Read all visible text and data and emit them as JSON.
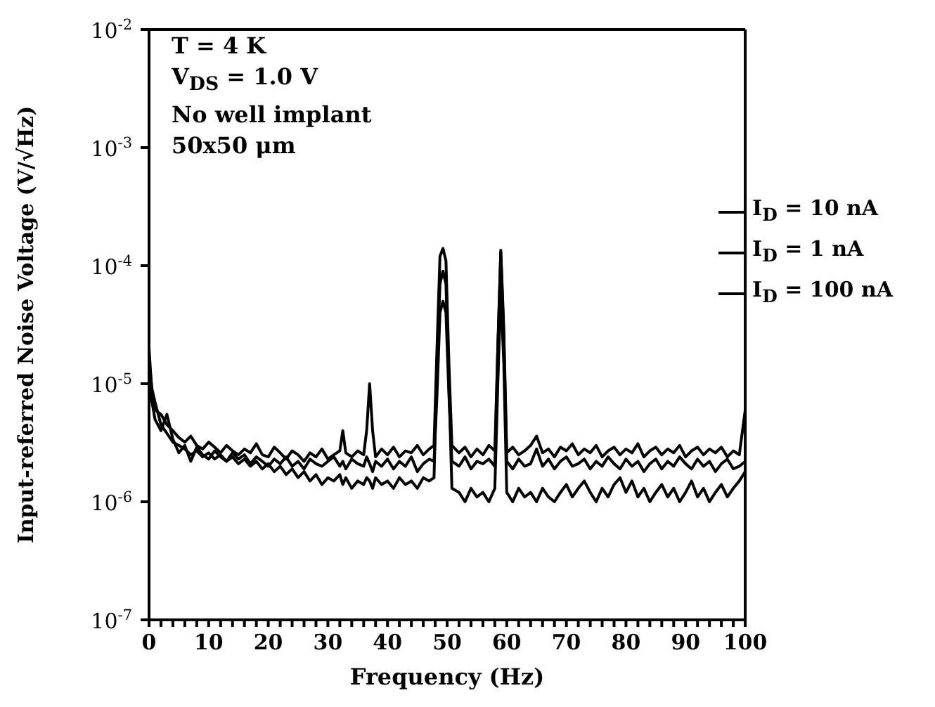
{
  "chart_data": {
    "type": "line",
    "xlabel": "Frequency (Hz)",
    "ylabel": "Input-referred Noise Voltage (V/√Hz)",
    "annotations": [
      "T = 4 K",
      "V$_{DS}$ = 1.0 V",
      "No well implant",
      "50x50 μm"
    ],
    "x": [
      0,
      0.5,
      1,
      2,
      3,
      4,
      5,
      6,
      7,
      8,
      9,
      10,
      11,
      12,
      13,
      14,
      15,
      16,
      17,
      18,
      19,
      20,
      21,
      22,
      23,
      24,
      25,
      26,
      27,
      28,
      29,
      30,
      31,
      32,
      32.5,
      33,
      34,
      35,
      36,
      36.5,
      37,
      37.5,
      38,
      39,
      40,
      41,
      42,
      43,
      44,
      45,
      46,
      47,
      47.8,
      48.3,
      48.8,
      49.3,
      49.8,
      50.3,
      50.8,
      52,
      53,
      54,
      55,
      56,
      57,
      58,
      58.5,
      59,
      59.5,
      60,
      61,
      62,
      63,
      64,
      65,
      66,
      67,
      68,
      69,
      70,
      71,
      72,
      73,
      74,
      75,
      76,
      77,
      78,
      79,
      80,
      81,
      82,
      83,
      84,
      85,
      86,
      87,
      88,
      89,
      90,
      91,
      92,
      93,
      94,
      95,
      96,
      97,
      98,
      99,
      100
    ],
    "series": [
      {
        "name": "I$_{D}$ = 10 nA",
        "color": "#000000",
        "values": [
          2e-05,
          8e-06,
          6e-06,
          5.5e-06,
          4.5e-06,
          4e-06,
          3.5e-06,
          3.2e-06,
          3.6e-06,
          3e-06,
          2.8e-06,
          3.2e-06,
          2.9e-06,
          2.6e-06,
          3e-06,
          2.7e-06,
          2.5e-06,
          2.8e-06,
          2.6e-06,
          3.1e-06,
          2.5e-06,
          2.4e-06,
          2.9e-06,
          2.6e-06,
          2.3e-06,
          2.7e-06,
          2.5e-06,
          2.2e-06,
          2.6e-06,
          2.4e-06,
          2.8e-06,
          2.3e-06,
          2.5e-06,
          2.7e-06,
          4e-06,
          2.6e-06,
          2.4e-06,
          2.7e-06,
          2.5e-06,
          4e-06,
          1e-05,
          4e-06,
          2.4e-06,
          2.8e-06,
          2.5e-06,
          2.9e-06,
          2.4e-06,
          2.7e-06,
          2.6e-06,
          3e-06,
          2.5e-06,
          2.8e-06,
          3e-06,
          2e-05,
          0.00012,
          0.00014,
          0.00011,
          1.5e-05,
          3e-06,
          2.6e-06,
          2.9e-06,
          2.4e-06,
          2.8e-06,
          2.5e-06,
          3e-06,
          2.7e-06,
          2e-05,
          0.000135,
          3e-05,
          2.6e-06,
          2.9e-06,
          2.5e-06,
          2.7e-06,
          3e-06,
          3.6e-06,
          2.6e-06,
          2.8e-06,
          2.4e-06,
          2.9e-06,
          2.7e-06,
          3.1e-06,
          2.5e-06,
          2.8e-06,
          2.6e-06,
          3e-06,
          2.4e-06,
          2.7e-06,
          2.9e-06,
          2.5e-06,
          2.8e-06,
          2.6e-06,
          3.1e-06,
          2.4e-06,
          2.7e-06,
          2.9e-06,
          2.5e-06,
          2.8e-06,
          2.6e-06,
          3e-06,
          2.4e-06,
          2.7e-06,
          2.9e-06,
          2.5e-06,
          2.8e-06,
          2.6e-06,
          2.9e-06,
          2.4e-06,
          2.7e-06,
          2.5e-06,
          6e-06
        ]
      },
      {
        "name": "I$_{D}$ = 1 nA",
        "color": "#000000",
        "values": [
          1.6e-05,
          9e-06,
          7e-06,
          4.5e-06,
          3.8e-06,
          3.2e-06,
          3e-06,
          2.8e-06,
          2.5e-06,
          2.7e-06,
          2.4e-06,
          2.6e-06,
          2.3e-06,
          2.5e-06,
          2.2e-06,
          2.4e-06,
          2.1e-06,
          2.3e-06,
          2e-06,
          2.2e-06,
          1.9e-06,
          2.1e-06,
          1.8e-06,
          2e-06,
          1.7e-06,
          1.9e-06,
          1.6e-06,
          1.8e-06,
          1.5e-06,
          1.7e-06,
          1.4e-06,
          1.6e-06,
          1.5e-06,
          1.7e-06,
          1.4e-06,
          1.6e-06,
          1.3e-06,
          1.5e-06,
          1.4e-06,
          1.6e-06,
          1.5e-06,
          1.3e-06,
          1.6e-06,
          1.4e-06,
          1.5e-06,
          1.3e-06,
          1.6e-06,
          1.4e-06,
          1.5e-06,
          1.3e-06,
          1.6e-06,
          1.5e-06,
          1.6e-06,
          1.5e-05,
          7e-05,
          9e-05,
          7e-05,
          1e-05,
          1.3e-06,
          1.2e-06,
          1e-06,
          1.3e-06,
          1.1e-06,
          1.2e-06,
          1e-06,
          1.3e-06,
          1e-05,
          6e-05,
          1.5e-05,
          1.2e-06,
          1e-06,
          1.3e-06,
          1.1e-06,
          1.2e-06,
          1e-06,
          1.3e-06,
          1.1e-06,
          1e-06,
          1.2e-06,
          1.4e-06,
          1.1e-06,
          1.3e-06,
          1.5e-06,
          1.2e-06,
          1e-06,
          1.3e-06,
          1.1e-06,
          1.4e-06,
          1.6e-06,
          1.2e-06,
          1.5e-06,
          1.1e-06,
          1.3e-06,
          1e-06,
          1.2e-06,
          1.4e-06,
          1.1e-06,
          1.3e-06,
          1e-06,
          1.2e-06,
          1.5e-06,
          1.1e-06,
          1.3e-06,
          1e-06,
          1.2e-06,
          1.4e-06,
          1.1e-06,
          1.3e-06,
          1.5e-06,
          1.8e-06
        ]
      },
      {
        "name": "I$_{D}$ = 100 nA",
        "color": "#000000",
        "values": [
          1.2e-05,
          7e-06,
          5e-06,
          4e-06,
          5.5e-06,
          3.4e-06,
          2.6e-06,
          3e-06,
          2.2e-06,
          2.9e-06,
          2.5e-06,
          2.3e-06,
          2.7e-06,
          2.4e-06,
          2.2e-06,
          2.6e-06,
          2.3e-06,
          2.5e-06,
          2.1e-06,
          2.4e-06,
          2.2e-06,
          2e-06,
          2.3e-06,
          2.1e-06,
          2.4e-06,
          2e-06,
          2.2e-06,
          1.9e-06,
          2.3e-06,
          2.1e-06,
          2e-06,
          2.2e-06,
          2.4e-06,
          2e-06,
          2.2e-06,
          1.9e-06,
          2.3e-06,
          2.1e-06,
          2e-06,
          2.4e-06,
          2.1e-06,
          1.8e-06,
          2.2e-06,
          2e-06,
          2.3e-06,
          1.9e-06,
          2.2e-06,
          2e-06,
          2.4e-06,
          1.8e-06,
          2.1e-06,
          2.3e-06,
          2.2e-06,
          8e-06,
          4e-05,
          5e-05,
          4e-05,
          8e-06,
          2.2e-06,
          2e-06,
          2.4e-06,
          1.9e-06,
          2.2e-06,
          2.1e-06,
          2.3e-06,
          2e-06,
          2e-05,
          0.00013,
          2.5e-05,
          2.2e-06,
          1.9e-06,
          2.3e-06,
          2e-06,
          2.1e-06,
          2.8e-06,
          2e-06,
          2.3e-06,
          1.9e-06,
          2.2e-06,
          2.4e-06,
          2e-06,
          2.1e-06,
          2.3e-06,
          1.9e-06,
          2.2e-06,
          2e-06,
          2.4e-06,
          2.1e-06,
          1.9e-06,
          2.3e-06,
          2e-06,
          2.2e-06,
          1.8e-06,
          2.1e-06,
          2.3e-06,
          1.9e-06,
          2.2e-06,
          2e-06,
          2.4e-06,
          2.1e-06,
          1.9e-06,
          2.3e-06,
          2e-06,
          2.2e-06,
          1.8e-06,
          2.1e-06,
          2.3e-06,
          1.9e-06,
          2e-06,
          2.2e-06
        ]
      }
    ],
    "log": "y",
    "xlim": [
      0,
      100
    ],
    "xticks": [
      0,
      {
        "value": 2,
        "label": null
      },
      {
        "value": 4,
        "label": null
      },
      {
        "value": 6,
        "label": null
      },
      {
        "value": 8,
        "label": null
      },
      10,
      {
        "value": 12,
        "label": null
      },
      {
        "value": 14,
        "label": null
      },
      {
        "value": 16,
        "label": null
      },
      {
        "value": 18,
        "label": null
      },
      20,
      {
        "value": 22,
        "label": null
      },
      {
        "value": 24,
        "label": null
      },
      {
        "value": 26,
        "label": null
      },
      {
        "value": 28,
        "label": null
      },
      30,
      {
        "value": 32,
        "label": null
      },
      {
        "value": 34,
        "label": null
      },
      {
        "value": 36,
        "label": null
      },
      {
        "value": 38,
        "label": null
      },
      40,
      {
        "value": 42,
        "label": null
      },
      {
        "value": 44,
        "label": null
      },
      {
        "value": 46,
        "label": null
      },
      {
        "value": 48,
        "label": null
      },
      50,
      {
        "value": 52,
        "label": null
      },
      {
        "value": 54,
        "label": null
      },
      {
        "value": 56,
        "label": null
      },
      {
        "value": 58,
        "label": null
      },
      60,
      {
        "value": 62,
        "label": null
      },
      {
        "value": 64,
        "label": null
      },
      {
        "value": 66,
        "label": null
      },
      {
        "value": 68,
        "label": null
      },
      70,
      {
        "value": 72,
        "label": null
      },
      {
        "value": 74,
        "label": null
      },
      {
        "value": 76,
        "label": null
      },
      {
        "value": 78,
        "label": null
      },
      80,
      {
        "value": 82,
        "label": null
      },
      {
        "value": 84,
        "label": null
      },
      {
        "value": 86,
        "label": null
      },
      {
        "value": 88,
        "label": null
      },
      90,
      {
        "value": 92,
        "label": null
      },
      {
        "value": 94,
        "label": null
      },
      {
        "value": 96,
        "label": null
      },
      {
        "value": 98,
        "label": null
      },
      100
    ],
    "ylim": [
      1e-07,
      0.01
    ],
    "yticks": [
      {
        "value": 1e-07,
        "label": "10$^{-7}$"
      },
      {
        "value": 1e-06,
        "label": "10$^{-6}$"
      },
      {
        "value": 1e-05,
        "label": "10$^{-5}$"
      },
      {
        "value": 0.0001,
        "label": "10$^{-4}$"
      },
      {
        "value": 0.001,
        "label": "10$^{-3}$"
      },
      {
        "value": 0.01,
        "label": "10$^{-2}$"
      }
    ],
    "grid": false,
    "legend": "top right",
    "marker": "none",
    "line_style": "solid"
  }
}
